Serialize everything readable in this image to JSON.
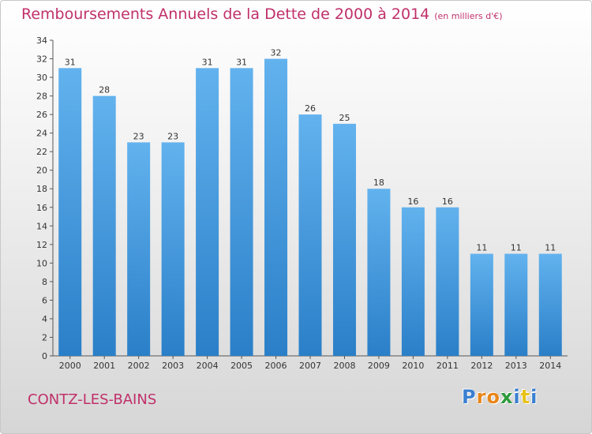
{
  "title": "Remboursements Annuels de la Dette de 2000 à 2014",
  "unit_note": "(en milliers d'€)",
  "commune": "CONTZ-LES-BAINS",
  "logo": {
    "text": "Proxiti",
    "letter_colors": [
      "#3a7fd0",
      "#e8861a",
      "#e8861a",
      "#2c9a3a",
      "#3a7fd0",
      "#e8c21a",
      "#3a7fd0"
    ]
  },
  "colors": {
    "accent": "#c0306a",
    "bar": "#3d90d6",
    "bar_light": "#62b2ee"
  },
  "chart_data": {
    "type": "bar",
    "title": "Remboursements Annuels de la Dette de 2000 à 2014",
    "xlabel": "",
    "ylabel": "",
    "categories": [
      "2000",
      "2001",
      "2002",
      "2003",
      "2004",
      "2005",
      "2006",
      "2007",
      "2008",
      "2009",
      "2010",
      "2011",
      "2012",
      "2013",
      "2014"
    ],
    "values": [
      31,
      28,
      23,
      23,
      31,
      31,
      32,
      26,
      25,
      18,
      16,
      16,
      11,
      11,
      11
    ],
    "ylim": [
      0,
      34
    ],
    "yticks": [
      0,
      2,
      4,
      6,
      8,
      10,
      12,
      14,
      16,
      18,
      20,
      22,
      24,
      26,
      28,
      30,
      32,
      34
    ],
    "grid": false,
    "legend": "none"
  }
}
